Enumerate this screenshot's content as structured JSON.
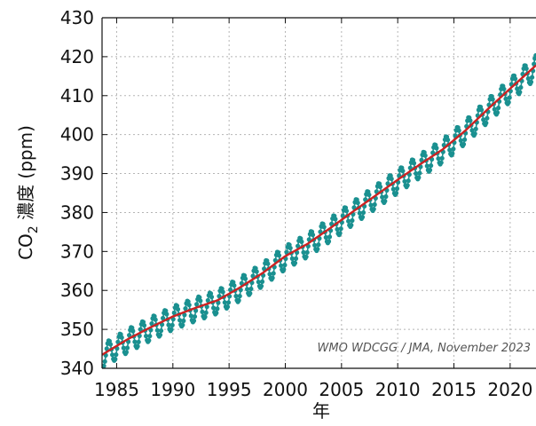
{
  "chart_data": {
    "type": "line",
    "xlabel": "年",
    "ylabel": "CO",
    "ylabel_sub": "2",
    "ylabel_rest": " 濃度 (ppm)",
    "annotation": "WMO WDCGG / JMA, November 2023",
    "xlim": [
      1983.7,
      2022.3
    ],
    "ylim": [
      340,
      430
    ],
    "x_ticks": [
      1985,
      1990,
      1995,
      2000,
      2005,
      2010,
      2015,
      2020
    ],
    "x_tick_labels": [
      "1985",
      "1990",
      "1995",
      "2000",
      "2005",
      "2010",
      "2015",
      "2020"
    ],
    "y_ticks": [
      340,
      350,
      360,
      370,
      380,
      390,
      400,
      410,
      420,
      430
    ],
    "y_tick_labels": [
      "340",
      "350",
      "360",
      "370",
      "380",
      "390",
      "400",
      "410",
      "420",
      "430"
    ],
    "grid": true,
    "colors": {
      "trend": "#cc2222",
      "monthly": "#1a9090",
      "grid": "#b5b5b5"
    },
    "series": [
      {
        "kind": "trend",
        "x": [
          1984,
          1986,
          1988,
          1990,
          1992,
          1994,
          1996,
          1998,
          2000,
          2002,
          2004,
          2006,
          2008,
          2010,
          2012,
          2014,
          2016,
          2018,
          2020,
          2022
        ],
        "values": [
          344.0,
          347.5,
          350.5,
          353.3,
          355.5,
          357.5,
          360.8,
          364.5,
          368.8,
          372.0,
          376.0,
          380.2,
          384.3,
          388.4,
          392.4,
          396.2,
          401.0,
          406.5,
          411.8,
          417.0
        ]
      },
      {
        "kind": "monthly",
        "amplitude": 3.0,
        "per_year": 12
      }
    ]
  }
}
